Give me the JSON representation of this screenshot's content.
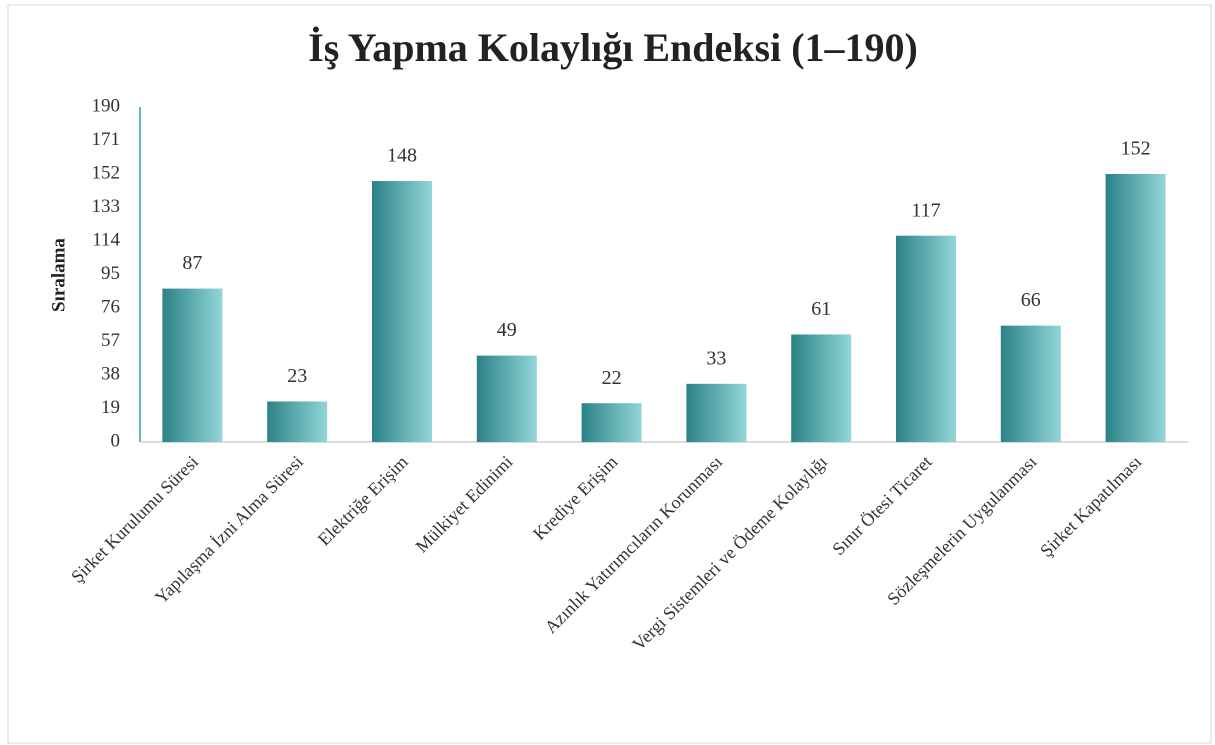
{
  "chart_data": {
    "type": "bar",
    "title": "İş Yapma Kolaylığı Endeksi (1–190)",
    "y_label": "Sıralama",
    "categories": [
      "Şirket Kurulumu Süresi",
      "Yapılaşma İzni Alma Süresi",
      "Elektriğe Erişim",
      "Mülkiyet Edinimi",
      "Krediye Erişim",
      "Azınlık Yatırımcıların Korunması",
      "Vergi Sistemleri ve Ödeme Kolaylığı",
      "Sınır Ötesi Ticaret",
      "Sözleşmelerin Uygulanması",
      "Şirket Kapatılması"
    ],
    "values": [
      87,
      23,
      148,
      49,
      22,
      33,
      61,
      117,
      66,
      152
    ],
    "gradient": [
      "#2b8286",
      "#93d6d9"
    ],
    "ylim": [
      0,
      190
    ],
    "yticks": [
      0,
      19,
      38,
      57,
      76,
      95,
      114,
      133,
      152,
      171,
      190
    ],
    "grid": false
  }
}
